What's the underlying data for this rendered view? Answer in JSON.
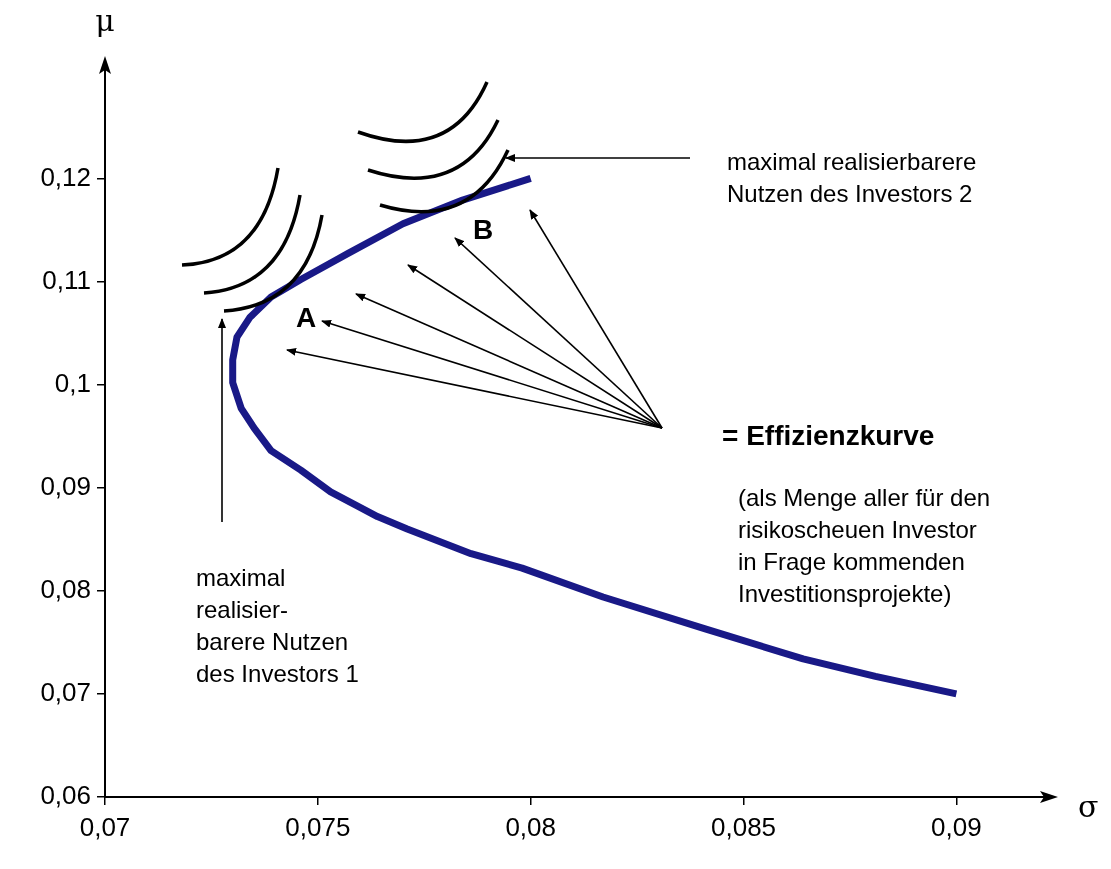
{
  "chart_data": {
    "type": "line",
    "xlabel": "σ",
    "ylabel": "μ",
    "x": [
      0.08,
      0.0784,
      0.077,
      0.0757,
      0.0746,
      0.0739,
      0.0734,
      0.0731,
      0.073,
      0.073,
      0.0732,
      0.0735,
      0.0739,
      0.0746,
      0.0753,
      0.0764,
      0.0771,
      0.0786,
      0.0798,
      0.0817,
      0.0841,
      0.0864,
      0.0881,
      0.09
    ],
    "series": [
      {
        "color": "#191987",
        "values": [
          0.12,
          0.1179,
          0.1156,
          0.1127,
          0.1102,
          0.1085,
          0.1065,
          0.1046,
          0.1024,
          0.1002,
          0.0977,
          0.0958,
          0.0936,
          0.0917,
          0.0896,
          0.0872,
          0.086,
          0.0836,
          0.0822,
          0.0794,
          0.0763,
          0.0734,
          0.0717,
          0.07
        ]
      }
    ],
    "xlim": [
      0.07,
      0.0922
    ],
    "ylim": [
      0.06,
      0.131
    ],
    "xticks": [
      {
        "value": 0.07,
        "label": "0,07"
      },
      {
        "value": 0.075,
        "label": "0,075"
      },
      {
        "value": 0.08,
        "label": "0,08"
      },
      {
        "value": 0.085,
        "label": "0,085"
      },
      {
        "value": 0.09,
        "label": "0,09"
      }
    ],
    "yticks": [
      {
        "value": 0.06,
        "label": "0,06"
      },
      {
        "value": 0.07,
        "label": "0,07"
      },
      {
        "value": 0.08,
        "label": "0,08"
      },
      {
        "value": 0.09,
        "label": "0,09"
      },
      {
        "value": 0.1,
        "label": "0,1"
      },
      {
        "value": 0.11,
        "label": "0,11"
      },
      {
        "value": 0.12,
        "label": "0,12"
      }
    ],
    "grid": false,
    "legend": false,
    "marker": "none",
    "line_style": "solid",
    "annotations": [
      "A",
      "B",
      "maximal realisierbarere\nNutzen des Investors 2",
      "= Effizienzkurve",
      "(als Menge aller für den\nrisikoscheuen Investor\nin Frage kommenden\nInvestitionsprojekte)",
      "maximal\nrealisier-\nbarere Nutzen\ndes Investors 1"
    ]
  }
}
